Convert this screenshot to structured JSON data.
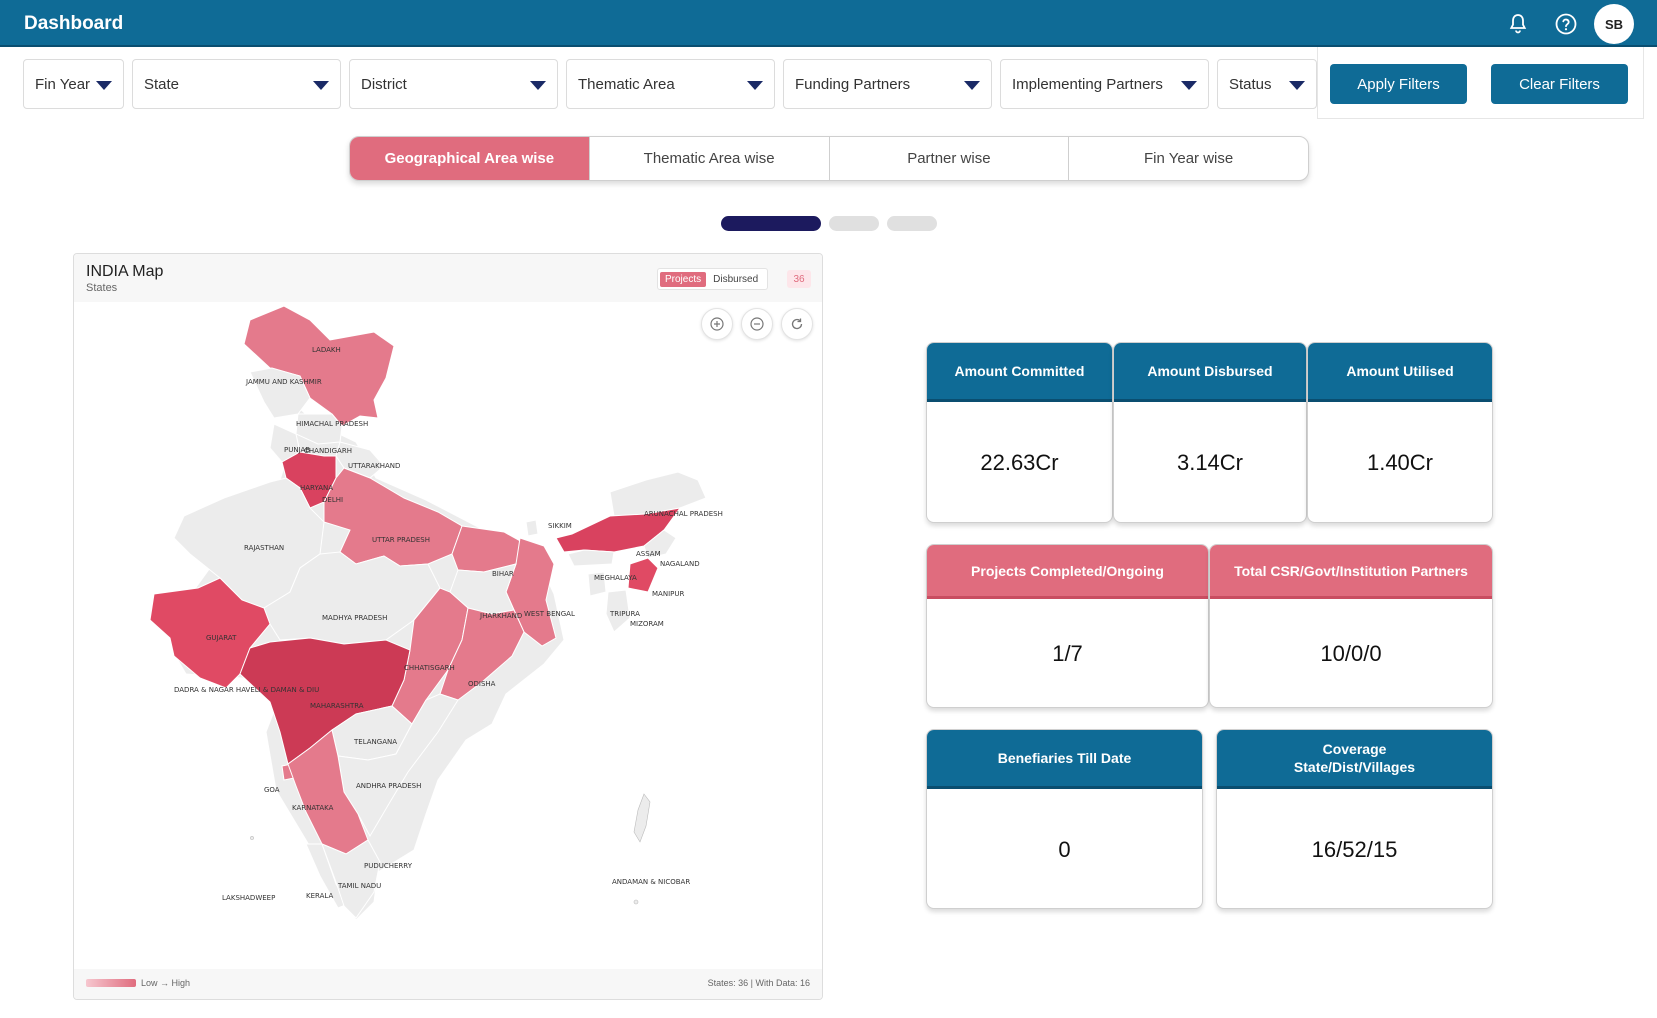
{
  "header": {
    "title": "Dashboard",
    "avatar_initials": "SB",
    "icons": [
      "bell-icon",
      "help-icon"
    ]
  },
  "filters": [
    {
      "key": "fin_year",
      "label": "Fin Year"
    },
    {
      "key": "state",
      "label": "State"
    },
    {
      "key": "district",
      "label": "District"
    },
    {
      "key": "thematic_area",
      "label": "Thematic Area"
    },
    {
      "key": "funding_partners",
      "label": "Funding Partners"
    },
    {
      "key": "implementing_partners",
      "label": "Implementing Partners"
    },
    {
      "key": "status",
      "label": "Status"
    }
  ],
  "actions": {
    "apply_label": "Apply Filters",
    "clear_label": "Clear Filters"
  },
  "tabs": [
    {
      "label": "Geographical Area wise",
      "active": true
    },
    {
      "label": "Thematic Area wise",
      "active": false
    },
    {
      "label": "Partner wise",
      "active": false
    },
    {
      "label": "Fin Year wise",
      "active": false
    }
  ],
  "carousel": {
    "pages": 3,
    "active_index": 0
  },
  "map": {
    "title": "INDIA Map",
    "subtitle": "States",
    "toggle": {
      "active": "Projects",
      "inactive": "Disbursed"
    },
    "count": "36",
    "legend": "Low → High",
    "footer_stats": "States: 36 | With Data: 16",
    "colors": {
      "none": "#ececec",
      "light": "#f0a3b0",
      "medium": "#e47a8c",
      "high": "#e04a64",
      "highest": "#cc3a55"
    },
    "labels": {
      "ladakh": "LADAKH",
      "jk": "JAMMU AND KASHMIR",
      "hp": "HIMACHAL PRADESH",
      "punjab": "PUNJAB",
      "chandigarh": "CHANDIGARH",
      "uttarakhand": "UTTARAKHAND",
      "haryana": "HARYANA",
      "delhi": "DELHI",
      "rajasthan": "RAJASTHAN",
      "up": "UTTAR PRADESH",
      "sikkim": "SIKKIM",
      "arunachal": "ARUNACHAL PRADESH",
      "assam": "ASSAM",
      "nagaland": "NAGALAND",
      "meghalaya": "MEGHALAYA",
      "bihar": "BIHAR",
      "manipur": "MANIPUR",
      "jharkhand": "JHARKHAND",
      "wb": "WEST BENGAL",
      "tripura": "TRIPURA",
      "mizoram": "MIZORAM",
      "mp": "MADHYA PRADESH",
      "gujarat": "GUJARAT",
      "chhattisgarh": "CHHATISGARH",
      "odisha": "ODISHA",
      "dnh": "DADRA & NAGAR HAVELI & DAMAN & DIU",
      "maharashtra": "MAHARASHTRA",
      "telangana": "TELANGANA",
      "goa": "GOA",
      "ap": "ANDHRA PRADESH",
      "karnataka": "KARNATAKA",
      "puducherry": "PUDUCHERRY",
      "andaman": "ANDAMAN & NICOBAR",
      "tn": "TAMIL NADU",
      "lakshadweep": "LAKSHADWEEP",
      "kerala": "KERALA"
    }
  },
  "kpis": {
    "committed": {
      "label": "Amount Committed",
      "value": "22.63Cr"
    },
    "disbursed": {
      "label": "Amount Disbursed",
      "value": "3.14Cr"
    },
    "utilised": {
      "label": "Amount Utilised",
      "value": "1.40Cr"
    },
    "projects": {
      "label": "Projects Completed/Ongoing",
      "value": "1/7"
    },
    "partners": {
      "label": "Total CSR/Govt/Institution Partners",
      "value": "10/0/0"
    },
    "beneficiaries": {
      "label": "Benefiaries Till Date",
      "value": "0"
    },
    "coverage": {
      "label_line1": "Coverage",
      "label_line2": "State/Dist/Villages",
      "value": "16/52/15"
    }
  }
}
